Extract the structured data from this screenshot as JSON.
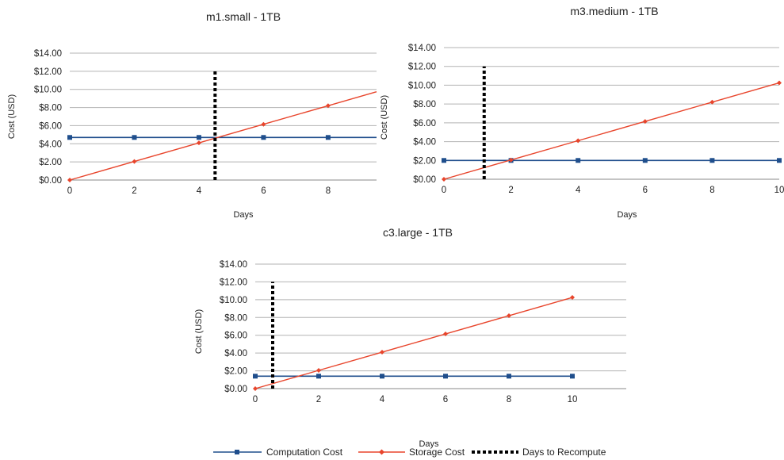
{
  "colors": {
    "computation": "#1f4e8c",
    "storage": "#e8452c",
    "recompute": "#000000",
    "grid": "#b3b3b3",
    "axis": "#888888"
  },
  "legend": {
    "computation_label": "Computation Cost",
    "storage_label": "Storage Cost",
    "recompute_label": "Days to Recompute",
    "placement": "bottom"
  },
  "chart_data": [
    {
      "type": "line",
      "title": "m1.small - 1TB",
      "xlabel": "Days",
      "ylabel": "Cost (USD)",
      "xlim": [
        0,
        9.5
      ],
      "ylim": [
        0,
        14
      ],
      "x_ticks": [
        "0",
        "2",
        "4",
        "6",
        "8"
      ],
      "y_ticks": [
        "$0.00",
        "$2.00",
        "$4.00",
        "$6.00",
        "$8.00",
        "$10.00",
        "$12.00",
        "$14.00"
      ],
      "grid": true,
      "series": [
        {
          "name": "Computation Cost",
          "x": [
            0,
            2,
            4,
            6,
            8
          ],
          "y": [
            4.7,
            4.7,
            4.7,
            4.7,
            4.7
          ],
          "line_end": 9.5
        },
        {
          "name": "Storage Cost",
          "x": [
            0,
            2,
            4,
            6,
            8
          ],
          "y": [
            0,
            2.05,
            4.1,
            6.15,
            8.2
          ],
          "line_end": 9.5
        },
        {
          "name": "Days to Recompute",
          "x": 4.5,
          "y_range": [
            0,
            12
          ]
        }
      ]
    },
    {
      "type": "line",
      "title": "m3.medium - 1TB",
      "xlabel": "Days",
      "ylabel": "Cost (USD)",
      "xlim": [
        0,
        10
      ],
      "ylim": [
        0,
        14
      ],
      "x_ticks": [
        "0",
        "2",
        "4",
        "6",
        "8",
        "10"
      ],
      "y_ticks": [
        "$0.00",
        "$2.00",
        "$4.00",
        "$6.00",
        "$8.00",
        "$10.00",
        "$12.00",
        "$14.00"
      ],
      "grid": true,
      "series": [
        {
          "name": "Computation Cost",
          "x": [
            0,
            2,
            4,
            6,
            8,
            10
          ],
          "y": [
            2.0,
            2.0,
            2.0,
            2.0,
            2.0,
            2.0
          ]
        },
        {
          "name": "Storage Cost",
          "x": [
            0,
            2,
            4,
            6,
            8,
            10
          ],
          "y": [
            0,
            2.05,
            4.1,
            6.15,
            8.2,
            10.25
          ]
        },
        {
          "name": "Days to Recompute",
          "x": 1.2,
          "y_range": [
            0,
            12
          ]
        }
      ]
    },
    {
      "type": "line",
      "title": "c3.large - 1TB",
      "xlabel": "Days",
      "ylabel": "Cost (USD)",
      "xlim": [
        0,
        11.7
      ],
      "ylim": [
        0,
        14
      ],
      "x_ticks": [
        "0",
        "2",
        "4",
        "6",
        "8",
        "10"
      ],
      "y_ticks": [
        "$0.00",
        "$2.00",
        "$4.00",
        "$6.00",
        "$8.00",
        "$10.00",
        "$12.00",
        "$14.00"
      ],
      "grid": true,
      "series": [
        {
          "name": "Computation Cost",
          "x": [
            0,
            2,
            4,
            6,
            8,
            10
          ],
          "y": [
            1.4,
            1.4,
            1.4,
            1.4,
            1.4,
            1.4
          ]
        },
        {
          "name": "Storage Cost",
          "x": [
            0,
            2,
            4,
            6,
            8,
            10
          ],
          "y": [
            0,
            2.05,
            4.1,
            6.15,
            8.2,
            10.25
          ]
        },
        {
          "name": "Days to Recompute",
          "x": 0.55,
          "y_range": [
            0,
            12
          ]
        }
      ]
    }
  ]
}
